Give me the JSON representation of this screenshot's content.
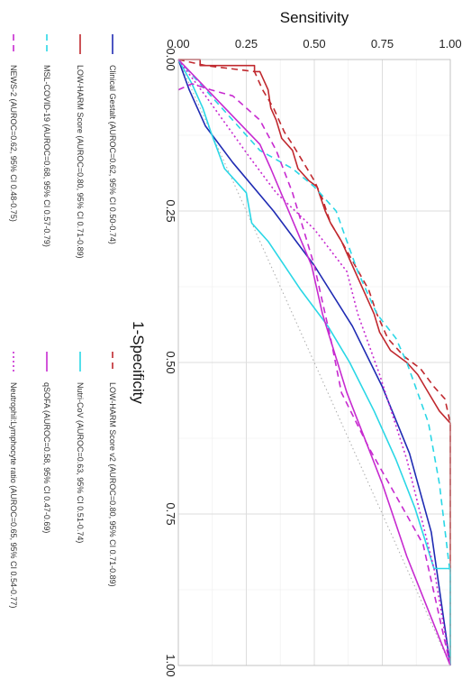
{
  "chart_data": {
    "type": "line",
    "xlabel": "Sensitivity",
    "ylabel": "1-Specificity",
    "xlim": [
      0,
      1
    ],
    "ylim": [
      0,
      1
    ],
    "x_ticks": [
      "0.00",
      "0.25",
      "0.50",
      "0.75",
      "1.00"
    ],
    "y_ticks": [
      "0.00",
      "0.25",
      "0.50",
      "0.75",
      "1.00"
    ],
    "grid": true,
    "legend_position": "left",
    "reference_line": {
      "style": "dotted",
      "color": "#aaaaaa"
    },
    "series": [
      {
        "name": "Clinical Gestalt (AUROC=0.62, 95% CI 0.50-0.74)",
        "color": "#1f2bb3",
        "dash": "solid",
        "points": [
          [
            0,
            0
          ],
          [
            0.04,
            0.05
          ],
          [
            0.1,
            0.11
          ],
          [
            0.2,
            0.17
          ],
          [
            0.35,
            0.25
          ],
          [
            0.5,
            0.34
          ],
          [
            0.64,
            0.44
          ],
          [
            0.75,
            0.54
          ],
          [
            0.85,
            0.65
          ],
          [
            0.93,
            0.78
          ],
          [
            1.0,
            1.0
          ]
        ]
      },
      {
        "name": "LOW-HARM Score (AUROC=0.80, 95% CI 0.71-0.89)",
        "color": "#c0282e",
        "dash": "solid",
        "points": [
          [
            0,
            0
          ],
          [
            0.08,
            0
          ],
          [
            0.08,
            0.01
          ],
          [
            0.28,
            0.01
          ],
          [
            0.28,
            0.02
          ],
          [
            0.3,
            0.02
          ],
          [
            0.33,
            0.05
          ],
          [
            0.34,
            0.08
          ],
          [
            0.36,
            0.1
          ],
          [
            0.38,
            0.13
          ],
          [
            0.42,
            0.15
          ],
          [
            0.44,
            0.18
          ],
          [
            0.48,
            0.2
          ],
          [
            0.51,
            0.21
          ],
          [
            0.54,
            0.25
          ],
          [
            0.56,
            0.27
          ],
          [
            0.6,
            0.3
          ],
          [
            0.64,
            0.34
          ],
          [
            0.68,
            0.38
          ],
          [
            0.72,
            0.42
          ],
          [
            0.74,
            0.45
          ],
          [
            0.78,
            0.48
          ],
          [
            0.84,
            0.5
          ],
          [
            0.88,
            0.52
          ],
          [
            0.92,
            0.55
          ],
          [
            0.96,
            0.58
          ],
          [
            1.0,
            0.6
          ],
          [
            1.0,
            1.0
          ]
        ]
      },
      {
        "name": "LOW-HARM Score v2 (AUROC=0.80, 95% CI 0.71-0.89)",
        "color": "#c0282e",
        "dash": "dashed",
        "points": [
          [
            0,
            0
          ],
          [
            0.1,
            0.01
          ],
          [
            0.28,
            0.02
          ],
          [
            0.31,
            0.05
          ],
          [
            0.35,
            0.08
          ],
          [
            0.39,
            0.12
          ],
          [
            0.42,
            0.14
          ],
          [
            0.46,
            0.17
          ],
          [
            0.5,
            0.2
          ],
          [
            0.53,
            0.23
          ],
          [
            0.56,
            0.27
          ],
          [
            0.6,
            0.3
          ],
          [
            0.65,
            0.34
          ],
          [
            0.7,
            0.38
          ],
          [
            0.73,
            0.42
          ],
          [
            0.77,
            0.46
          ],
          [
            0.83,
            0.49
          ],
          [
            0.89,
            0.51
          ],
          [
            0.94,
            0.54
          ],
          [
            0.98,
            0.56
          ],
          [
            1.0,
            0.6
          ],
          [
            1.0,
            1.0
          ]
        ]
      },
      {
        "name": "Nutri-CoV (AUROC=0.63, 95% CI 0.51-0.74)",
        "color": "#2ad7e6",
        "dash": "solid",
        "points": [
          [
            0,
            0
          ],
          [
            0.05,
            0.04
          ],
          [
            0.09,
            0.08
          ],
          [
            0.12,
            0.12
          ],
          [
            0.17,
            0.18
          ],
          [
            0.25,
            0.22
          ],
          [
            0.27,
            0.27
          ],
          [
            0.33,
            0.3
          ],
          [
            0.45,
            0.38
          ],
          [
            0.55,
            0.44
          ],
          [
            0.63,
            0.5
          ],
          [
            0.72,
            0.58
          ],
          [
            0.8,
            0.66
          ],
          [
            0.87,
            0.74
          ],
          [
            0.94,
            0.84
          ],
          [
            1.0,
            0.84
          ],
          [
            1.0,
            1.0
          ]
        ]
      },
      {
        "name": "MSL-COVID-19 (AUROC=0.68, 95% CI 0.57-0.79)",
        "color": "#2ad7e6",
        "dash": "dashed",
        "points": [
          [
            0,
            0
          ],
          [
            0.1,
            0.05
          ],
          [
            0.2,
            0.1
          ],
          [
            0.3,
            0.15
          ],
          [
            0.42,
            0.18
          ],
          [
            0.5,
            0.21
          ],
          [
            0.58,
            0.25
          ],
          [
            0.62,
            0.3
          ],
          [
            0.66,
            0.35
          ],
          [
            0.73,
            0.42
          ],
          [
            0.8,
            0.46
          ],
          [
            0.84,
            0.5
          ],
          [
            0.88,
            0.55
          ],
          [
            0.92,
            0.6
          ],
          [
            0.96,
            0.7
          ],
          [
            1.0,
            0.85
          ],
          [
            1.0,
            1.0
          ]
        ]
      },
      {
        "name": "qSOFA (AUROC=0.58, 95% CI 0.47-0.69)",
        "color": "#c72ad0",
        "dash": "solid",
        "points": [
          [
            0,
            0
          ],
          [
            0.3,
            0.14
          ],
          [
            0.34,
            0.18
          ],
          [
            0.49,
            0.34
          ],
          [
            0.53,
            0.42
          ],
          [
            0.62,
            0.55
          ],
          [
            0.75,
            0.7
          ],
          [
            0.84,
            0.82
          ],
          [
            1.0,
            1.0
          ]
        ]
      },
      {
        "name": "NEWS-2 (AUROC=0.62, 95% CI 0.48-0.75)",
        "color": "#c72ad0",
        "dash": "dashed",
        "points": [
          [
            0,
            0.05
          ],
          [
            0.05,
            0.04
          ],
          [
            0.12,
            0.05
          ],
          [
            0.2,
            0.06
          ],
          [
            0.3,
            0.1
          ],
          [
            0.36,
            0.15
          ],
          [
            0.42,
            0.22
          ],
          [
            0.5,
            0.34
          ],
          [
            0.56,
            0.46
          ],
          [
            0.6,
            0.55
          ],
          [
            0.7,
            0.64
          ],
          [
            0.8,
            0.72
          ],
          [
            0.9,
            0.8
          ],
          [
            1.0,
            1.0
          ]
        ]
      },
      {
        "name": "Neutrophil:Lymphocyte ratio (AUROC=0.65, 95% CI 0.54-0.77)",
        "color": "#c72ad0",
        "dash": "dotted",
        "points": [
          [
            0,
            0
          ],
          [
            0.1,
            0.06
          ],
          [
            0.18,
            0.11
          ],
          [
            0.26,
            0.16
          ],
          [
            0.36,
            0.22
          ],
          [
            0.5,
            0.28
          ],
          [
            0.62,
            0.35
          ],
          [
            0.66,
            0.42
          ],
          [
            0.74,
            0.52
          ],
          [
            0.84,
            0.66
          ],
          [
            0.94,
            0.84
          ],
          [
            1.0,
            1.0
          ]
        ]
      }
    ]
  }
}
